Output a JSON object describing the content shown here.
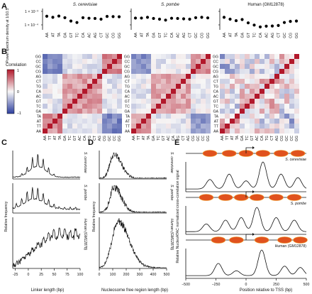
{
  "panel_labels": [
    "A",
    "B",
    "C",
    "D",
    "E"
  ],
  "colors": {
    "heat_high": "#b2182b",
    "heat_mid": "#f7f7f7",
    "heat_low": "#2c3e9e",
    "dot": "#000000",
    "nuc": "#e0521e",
    "nuc_edge": "#f0a030"
  },
  "panel_a": {
    "ylabel": "Power spectrum density at 1/10.5",
    "yticks": [
      "1 × 10⁻³",
      "1 × 10⁻⁴"
    ],
    "categories": [
      "AA",
      "AT",
      "TA",
      "GA",
      "GT",
      "TC",
      "CA",
      "AC",
      "AG",
      "CT",
      "GC",
      "CG",
      "GG"
    ],
    "subplots": [
      {
        "title": "S. cerevisiae",
        "values": [
          0.66,
          0.6,
          0.67,
          0.58,
          0.4,
          0.32,
          0.58,
          0.55,
          0.54,
          0.5,
          0.65,
          0.64,
          0.63
        ]
      },
      {
        "title": "S. pombe",
        "values": [
          0.56,
          0.56,
          0.6,
          0.54,
          0.5,
          0.45,
          0.55,
          0.54,
          0.52,
          0.5,
          0.58,
          0.6,
          0.57
        ]
      },
      {
        "title": "Human (GM12878)",
        "values": [
          0.6,
          0.5,
          0.42,
          0.48,
          0.3,
          0.18,
          0.08,
          0.12,
          0.13,
          0.16,
          0.32,
          0.38,
          0.4
        ]
      }
    ]
  },
  "panel_b": {
    "colorbar_label": "Correlation",
    "colorbar_ticks": [
      "1",
      "0",
      "−1"
    ],
    "row_labels": [
      "GG",
      "CC",
      "GC",
      "CG",
      "AG",
      "CT",
      "TG",
      "CA",
      "AC",
      "GT",
      "TC",
      "GA",
      "TA",
      "AT",
      "TT",
      "AA"
    ],
    "col_labels": [
      "AA",
      "TT",
      "AT",
      "TA",
      "GA",
      "TC",
      "GT",
      "AC",
      "CA",
      "TG",
      "CT",
      "AG",
      "CG",
      "GC",
      "CC",
      "GG"
    ],
    "group_row": [
      0,
      0,
      0,
      0,
      1,
      1,
      1,
      1,
      1,
      1,
      1,
      1,
      2,
      2,
      2,
      2
    ],
    "group_col": [
      2,
      2,
      2,
      2,
      1,
      1,
      1,
      1,
      1,
      1,
      1,
      1,
      0,
      0,
      0,
      0
    ]
  },
  "panel_c": {
    "xlabel": "Linker length (bp)",
    "ylabel": "Relative frequency",
    "xticks": [
      -25,
      0,
      25,
      50,
      75,
      100
    ],
    "xlim": [
      -30,
      100
    ],
    "subplots": [
      "S. cerevisiae",
      "S. pombe",
      "Human (GM12878)"
    ]
  },
  "panel_d": {
    "xlabel": "Nucleosome free region length (bp)",
    "ylabel": "Relative frequency",
    "xticks": [
      0,
      100,
      200,
      300,
      400,
      500
    ],
    "xlim": [
      0,
      500
    ],
    "subplots": [
      "S. cerevisiae",
      "S. pombe",
      "Human (GM12878)"
    ]
  },
  "panel_e": {
    "xlabel": "Position relative to TSS (bp)",
    "ylabel": "Relative NucleoATAC normalized cross-correlation signal",
    "xticks": [
      "−500",
      "−250",
      "0",
      "250",
      "500"
    ],
    "xlim": [
      -500,
      500
    ],
    "subplots": [
      "S. cerevisiae",
      "S. pombe",
      "Human (GM12878)"
    ],
    "peaks": [
      [
        [
          -300,
          0.35
        ],
        [
          -140,
          0.55
        ],
        [
          0,
          0.3
        ],
        [
          140,
          1.0
        ],
        [
          290,
          0.55
        ],
        [
          430,
          0.42
        ]
      ],
      [
        [
          -330,
          0.3
        ],
        [
          -170,
          0.45
        ],
        [
          -40,
          0.55
        ],
        [
          90,
          0.95
        ],
        [
          250,
          0.55
        ],
        [
          400,
          0.45
        ]
      ],
      [
        [
          -230,
          0.45
        ],
        [
          -80,
          0.18
        ],
        [
          130,
          0.95
        ],
        [
          320,
          0.35
        ],
        [
          450,
          0.3
        ]
      ]
    ]
  },
  "chart_data": [
    {
      "type": "scatter",
      "title": "Power spectrum density at 1/10.5",
      "categories": [
        "AA",
        "AT",
        "TA",
        "GA",
        "GT",
        "TC",
        "CA",
        "AC",
        "AG",
        "CT",
        "GC",
        "CG",
        "GG"
      ],
      "series": [
        {
          "name": "S. cerevisiae",
          "values": [
            0.66,
            0.6,
            0.67,
            0.58,
            0.4,
            0.32,
            0.58,
            0.55,
            0.54,
            0.5,
            0.65,
            0.64,
            0.63
          ]
        },
        {
          "name": "S. pombe",
          "values": [
            0.56,
            0.56,
            0.6,
            0.54,
            0.5,
            0.45,
            0.55,
            0.54,
            0.52,
            0.5,
            0.58,
            0.6,
            0.57
          ]
        },
        {
          "name": "Human (GM12878)",
          "values": [
            0.6,
            0.5,
            0.42,
            0.48,
            0.3,
            0.18,
            0.08,
            0.12,
            0.13,
            0.16,
            0.32,
            0.38,
            0.4
          ]
        }
      ]
    },
    {
      "type": "heatmap",
      "title": "Correlation",
      "colorbar_range": [
        -1,
        1
      ]
    },
    {
      "type": "line",
      "xlabel": "Linker length (bp)",
      "ylabel": "Relative frequency",
      "xlim": [
        -30,
        100
      ]
    },
    {
      "type": "line",
      "xlabel": "Nucleosome free region length (bp)",
      "ylabel": "Relative frequency",
      "xlim": [
        0,
        500
      ]
    },
    {
      "type": "line",
      "xlabel": "Position relative to TSS (bp)",
      "ylabel": "Relative NucleoATAC normalized cross-correlation signal",
      "xlim": [
        -500,
        500
      ]
    }
  ]
}
